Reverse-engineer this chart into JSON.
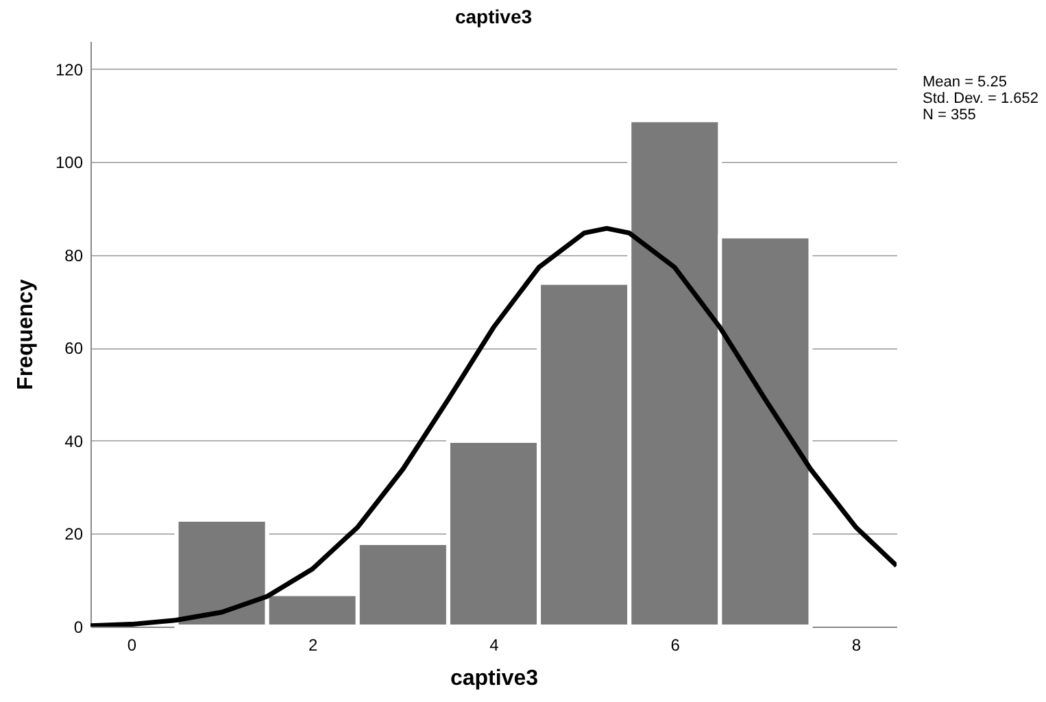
{
  "chart_data": {
    "type": "histogram",
    "title": "captive3",
    "xlabel": "captive3",
    "ylabel": "Frequency",
    "bins": [
      0.5,
      1.5,
      2.5,
      3.5,
      4.5,
      5.5,
      6.5,
      7.5
    ],
    "values": [
      23,
      7,
      18,
      40,
      74,
      109,
      84
    ],
    "color": "#7a7a7a",
    "series": [
      {
        "type": "line",
        "color": "#000000",
        "x": [
          -0.45,
          0,
          0.5,
          1,
          1.5,
          2,
          2.5,
          3,
          3.5,
          4,
          4.5,
          5,
          5.25,
          5.5,
          6,
          6.5,
          7,
          7.5,
          8,
          8.45
        ],
        "values": [
          0.2,
          0.5,
          1.4,
          3.1,
          6.5,
          12.4,
          21.4,
          33.9,
          48.9,
          64.4,
          77.3,
          84.7,
          85.7,
          84.7,
          77.3,
          64.4,
          48.9,
          33.9,
          21.4,
          13.1
        ]
      }
    ],
    "xlim": [
      -0.45,
      8.45
    ],
    "xticks": [
      0,
      2,
      4,
      6,
      8
    ],
    "ylim": [
      0,
      126
    ],
    "yticks": [
      0,
      20,
      40,
      60,
      80,
      100,
      120
    ],
    "grid": "y",
    "annotations": [
      "Mean = 5.25",
      "Std. Dev. = 1.652",
      "N = 355"
    ]
  }
}
